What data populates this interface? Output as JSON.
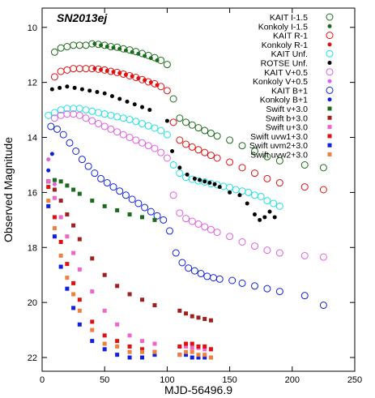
{
  "chart_data": {
    "type": "scatter",
    "title": "SN2013ej",
    "xlabel": "MJD-56496.9",
    "ylabel": "Observed Magnitude",
    "xlim": [
      0,
      250
    ],
    "ylim": [
      22.5,
      9.3
    ],
    "y_inverted": true,
    "x_ticks": [
      0,
      50,
      100,
      150,
      200,
      250
    ],
    "y_ticks": [
      10,
      12,
      14,
      16,
      18,
      20,
      22
    ],
    "grid": false,
    "legend_position": "top-right",
    "series": [
      {
        "name": "KAIT I-1.5",
        "color": "#1a6b1a",
        "marker": "open-circle",
        "x": [
          10,
          15,
          20,
          25,
          30,
          35,
          40,
          45,
          50,
          55,
          60,
          65,
          70,
          75,
          80,
          85,
          90,
          95,
          100,
          105,
          110,
          115,
          120,
          125,
          130,
          135,
          140,
          150,
          160,
          170,
          180,
          190,
          210,
          225
        ],
        "y": [
          10.9,
          10.75,
          10.7,
          10.65,
          10.65,
          10.65,
          10.6,
          10.62,
          10.65,
          10.7,
          10.72,
          10.78,
          10.82,
          10.88,
          10.95,
          11.02,
          11.1,
          11.2,
          11.35,
          12.6,
          13.3,
          13.45,
          13.55,
          13.65,
          13.75,
          13.85,
          13.95,
          14.1,
          14.3,
          14.5,
          14.7,
          14.85,
          15.0,
          15.1
        ]
      },
      {
        "name": "Konkoly I-1.5",
        "color": "#1a6b1a",
        "marker": "filled-circle",
        "x": [
          42,
          47,
          52,
          57,
          62,
          67,
          72,
          77,
          82,
          87,
          92
        ],
        "y": [
          10.6,
          10.65,
          10.7,
          10.74,
          10.78,
          10.84,
          10.9,
          10.96,
          11.04,
          11.12,
          11.2
        ]
      },
      {
        "name": "KAIT R-1",
        "color": "#e01010",
        "marker": "open-circle",
        "x": [
          10,
          15,
          20,
          25,
          30,
          35,
          40,
          45,
          50,
          55,
          60,
          65,
          70,
          75,
          80,
          85,
          90,
          95,
          100,
          105,
          110,
          115,
          120,
          125,
          130,
          135,
          140,
          150,
          160,
          170,
          180,
          190,
          210,
          225
        ],
        "y": [
          11.8,
          11.6,
          11.55,
          11.5,
          11.5,
          11.5,
          11.5,
          11.52,
          11.55,
          11.6,
          11.64,
          11.7,
          11.76,
          11.82,
          11.9,
          11.98,
          12.05,
          12.15,
          12.3,
          13.45,
          14.1,
          14.25,
          14.35,
          14.45,
          14.55,
          14.65,
          14.75,
          14.9,
          15.1,
          15.3,
          15.5,
          15.65,
          15.8,
          15.9
        ]
      },
      {
        "name": "Konkoly R-1",
        "color": "#e01010",
        "marker": "filled-circle",
        "x": [
          42,
          47,
          52,
          57,
          62,
          67,
          72,
          77,
          82,
          87,
          92
        ],
        "y": [
          11.5,
          11.54,
          11.58,
          11.62,
          11.66,
          11.72,
          11.78,
          11.85,
          11.92,
          12.0,
          12.1
        ]
      },
      {
        "name": "KAIT Unf.",
        "color": "#20e0e0",
        "marker": "open-circle",
        "x": [
          5,
          10,
          15,
          20,
          25,
          30,
          35,
          40,
          45,
          50,
          55,
          60,
          65,
          70,
          75,
          80,
          85,
          90,
          95,
          100,
          105,
          110,
          115,
          120,
          125,
          130,
          135,
          140,
          145,
          150,
          155,
          160,
          165,
          170,
          175,
          180,
          185,
          190
        ],
        "y": [
          13.2,
          13.1,
          13.0,
          12.95,
          12.95,
          12.95,
          13.0,
          13.05,
          13.1,
          13.15,
          13.2,
          13.25,
          13.3,
          13.35,
          13.42,
          13.5,
          13.58,
          13.66,
          13.75,
          13.9,
          15.0,
          15.3,
          15.45,
          15.52,
          15.58,
          15.62,
          15.68,
          15.72,
          15.78,
          15.82,
          15.9,
          15.95,
          16.0,
          16.1,
          16.15,
          16.3,
          16.4,
          16.5
        ]
      },
      {
        "name": "ROTSE Unf.",
        "color": "#000000",
        "marker": "filled-circle",
        "x": [
          8,
          14,
          20,
          26,
          32,
          38,
          44,
          50,
          56,
          62,
          68,
          74,
          80,
          86,
          100,
          104,
          110,
          116,
          122,
          126,
          130,
          134,
          138,
          142,
          150,
          158,
          164,
          170,
          174,
          178,
          182,
          186
        ],
        "y": [
          12.25,
          12.2,
          12.15,
          12.2,
          12.25,
          12.3,
          12.35,
          12.4,
          12.5,
          12.6,
          12.7,
          12.8,
          12.9,
          13.0,
          13.4,
          14.5,
          15.1,
          15.35,
          15.5,
          15.55,
          15.6,
          15.65,
          15.7,
          15.8,
          16.0,
          16.1,
          16.4,
          16.8,
          17.0,
          16.9,
          16.7,
          16.9
        ]
      },
      {
        "name": "KAIT V+0.5",
        "color": "#e060e0",
        "marker": "open-circle",
        "x": [
          10,
          15,
          20,
          25,
          30,
          35,
          40,
          45,
          50,
          55,
          60,
          65,
          70,
          75,
          80,
          85,
          90,
          95,
          100,
          105,
          110,
          115,
          120,
          125,
          130,
          135,
          140,
          150,
          160,
          170,
          180,
          190,
          210,
          225
        ],
        "y": [
          13.3,
          13.2,
          13.15,
          13.15,
          13.2,
          13.3,
          13.4,
          13.5,
          13.6,
          13.7,
          13.8,
          13.9,
          14.0,
          14.1,
          14.2,
          14.3,
          14.4,
          14.55,
          14.75,
          16.1,
          16.75,
          16.95,
          17.05,
          17.15,
          17.25,
          17.35,
          17.45,
          17.6,
          17.8,
          17.95,
          18.1,
          18.2,
          18.3,
          18.35
        ]
      },
      {
        "name": "Konkoly V+0.5",
        "color": "#e060e0",
        "marker": "filled-circle",
        "x": [
          5,
          10
        ],
        "y": [
          14.8,
          15.7
        ]
      },
      {
        "name": "KAIT B+1",
        "color": "#1020e0",
        "marker": "open-circle",
        "x": [
          7,
          12,
          17,
          22,
          27,
          32,
          37,
          42,
          47,
          52,
          57,
          62,
          67,
          72,
          77,
          82,
          87,
          92,
          97,
          102,
          107,
          112,
          117,
          122,
          127,
          132,
          137,
          142,
          152,
          160,
          170,
          180,
          190,
          210,
          225
        ],
        "y": [
          13.6,
          13.7,
          13.9,
          14.2,
          14.5,
          14.8,
          15.05,
          15.3,
          15.5,
          15.65,
          15.8,
          15.95,
          16.1,
          16.25,
          16.4,
          16.55,
          16.7,
          16.85,
          17.0,
          17.4,
          18.2,
          18.55,
          18.75,
          18.85,
          18.95,
          19.05,
          19.1,
          19.15,
          19.2,
          19.3,
          19.4,
          19.5,
          19.6,
          19.75,
          20.1
        ]
      },
      {
        "name": "Konkoly B+1",
        "color": "#1020e0",
        "marker": "filled-circle",
        "x": [
          5,
          8
        ],
        "y": [
          15.2,
          14.6
        ]
      },
      {
        "name": "Swift v+3.0",
        "color": "#1a6b1a",
        "marker": "filled-square",
        "x": [
          5,
          10,
          15,
          20,
          25,
          30,
          40,
          50,
          60,
          70,
          80,
          90
        ],
        "y": [
          15.6,
          15.55,
          15.6,
          15.75,
          15.9,
          16.05,
          16.3,
          16.5,
          16.65,
          16.8,
          16.9,
          17.0
        ]
      },
      {
        "name": "Swift b+3.0",
        "color": "#a02020",
        "marker": "filled-square",
        "x": [
          5,
          10,
          15,
          20,
          25,
          30,
          40,
          50,
          60,
          70,
          80,
          90,
          110,
          115,
          120,
          125,
          130,
          135
        ],
        "y": [
          15.6,
          15.9,
          16.3,
          16.8,
          17.2,
          17.7,
          18.4,
          19.0,
          19.4,
          19.7,
          19.9,
          20.1,
          20.3,
          20.4,
          20.5,
          20.55,
          20.6,
          20.65
        ]
      },
      {
        "name": "Swift u+3.0",
        "color": "#ee66cc",
        "marker": "filled-square",
        "x": [
          5,
          10,
          15,
          20,
          25,
          30,
          40,
          50,
          60,
          70,
          80,
          90,
          110,
          115,
          120,
          125,
          130,
          135
        ],
        "y": [
          15.6,
          16.2,
          16.9,
          17.6,
          18.2,
          18.8,
          19.6,
          20.3,
          20.8,
          21.2,
          21.4,
          21.5,
          21.6,
          21.6,
          21.65,
          21.65,
          21.7,
          21.7
        ]
      },
      {
        "name": "Swift uvw1+3.0",
        "color": "#e01010",
        "marker": "filled-square",
        "x": [
          5,
          10,
          15,
          20,
          25,
          30,
          40,
          50,
          60,
          70,
          80,
          90,
          110,
          115,
          120,
          125,
          130,
          135
        ],
        "y": [
          15.8,
          16.9,
          17.8,
          18.6,
          19.3,
          19.9,
          20.7,
          21.2,
          21.4,
          21.6,
          21.7,
          21.8,
          21.6,
          21.5,
          21.5,
          21.6,
          21.6,
          21.7
        ]
      },
      {
        "name": "Swift uvm2+3.0",
        "color": "#1020e0",
        "marker": "filled-square",
        "x": [
          5,
          10,
          15,
          20,
          25,
          30,
          40,
          50,
          60,
          70,
          80,
          90,
          110,
          115,
          120,
          125,
          130,
          135
        ],
        "y": [
          16.5,
          17.6,
          18.7,
          19.5,
          20.2,
          20.8,
          21.4,
          21.7,
          21.9,
          22.0,
          22.0,
          21.9,
          21.9,
          21.9,
          22.0,
          22.0,
          22.0,
          22.0
        ]
      },
      {
        "name": "Swift uvw2+3.0",
        "color": "#f08040",
        "marker": "filled-square",
        "x": [
          5,
          10,
          15,
          20,
          25,
          30,
          40,
          50,
          60,
          70,
          80,
          90,
          110,
          115,
          120,
          125,
          130,
          135
        ],
        "y": [
          16.3,
          17.3,
          18.3,
          19.1,
          19.7,
          20.3,
          21.0,
          21.5,
          21.6,
          21.8,
          21.8,
          21.8,
          21.9,
          21.8,
          21.8,
          21.9,
          21.9,
          22.0
        ]
      }
    ]
  }
}
